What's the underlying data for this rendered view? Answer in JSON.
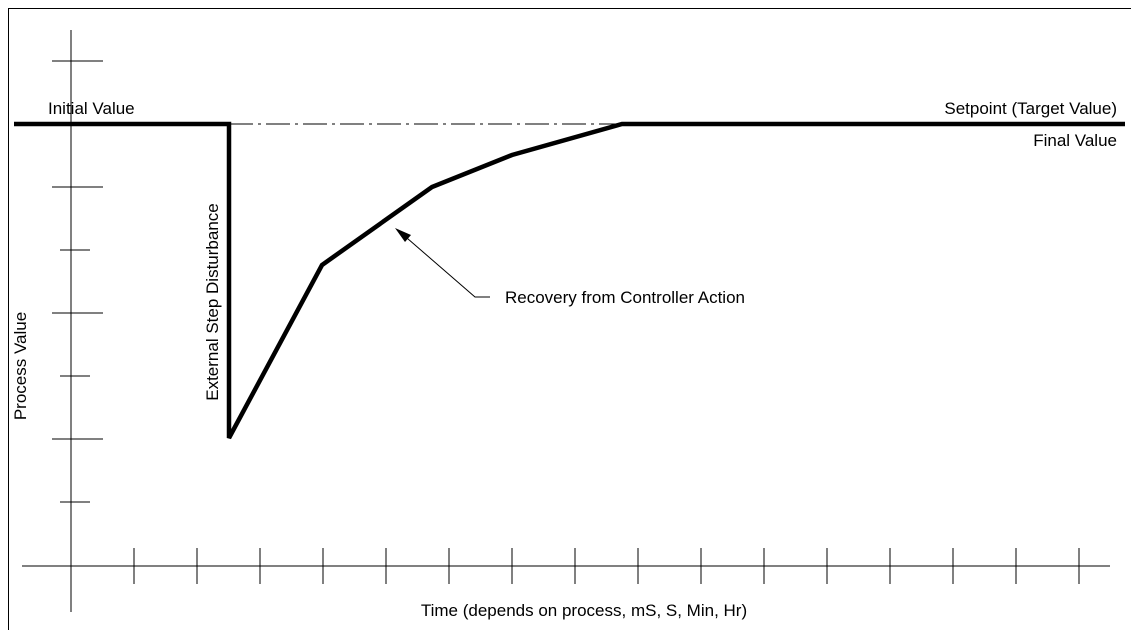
{
  "labels": {
    "initial": "Initial Value",
    "setpoint": "Setpoint (Target Value)",
    "final": "Final Value",
    "disturbance": "External Step Disturbance",
    "y_axis": "Process Value",
    "recovery": "Recovery from Controller Action",
    "x_axis": "Time (depends on process, mS, S, Min, Hr)"
  }
}
